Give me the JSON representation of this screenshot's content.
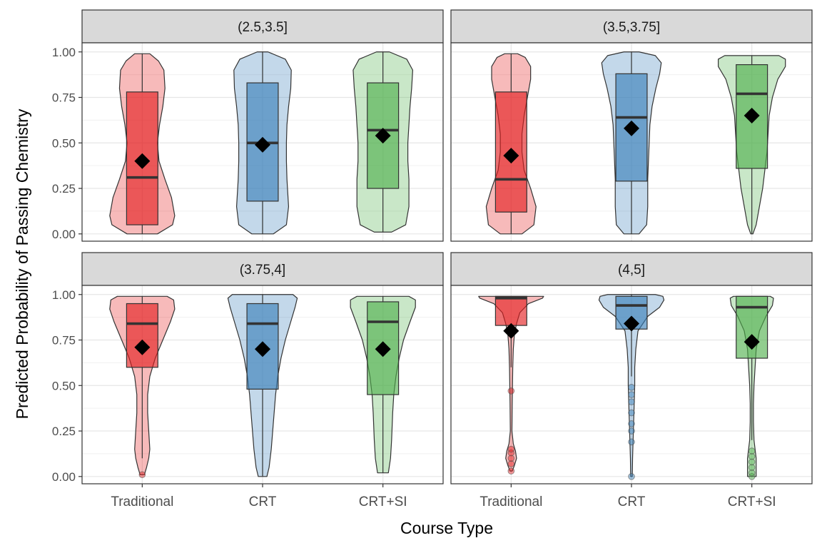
{
  "chart_data": {
    "type": "violin",
    "xlabel": "Course Type",
    "ylabel": "Predicted Probability of Passing Chemistry",
    "ylim": [
      -0.04,
      1.05
    ],
    "y_ticks": [
      0.0,
      0.25,
      0.5,
      0.75,
      1.0
    ],
    "y_tick_labels": [
      "0.00",
      "0.25",
      "0.50",
      "0.75",
      "1.00"
    ],
    "categories": [
      "Traditional",
      "CRT",
      "CRT+SI"
    ],
    "colors": {
      "Traditional": "#e41a1c",
      "CRT": "#377eb8",
      "CRT+SI": "#4daf4a"
    },
    "mean_marker": "black-diamond",
    "grid": true,
    "legend": "none",
    "panels": [
      {
        "strip": "(2.5,3.5]",
        "groups": [
          {
            "category": "Traditional",
            "box": {
              "q1": 0.05,
              "median": 0.31,
              "q3": 0.78,
              "whisker_low": 0.0,
              "whisker_high": 0.99
            },
            "mean": 0.4,
            "outliers": [],
            "violin": [
              [
                0.0,
                0.28
              ],
              [
                0.05,
                0.56
              ],
              [
                0.1,
                0.6
              ],
              [
                0.2,
                0.54
              ],
              [
                0.3,
                0.42
              ],
              [
                0.4,
                0.31
              ],
              [
                0.5,
                0.28
              ],
              [
                0.6,
                0.32
              ],
              [
                0.7,
                0.38
              ],
              [
                0.8,
                0.42
              ],
              [
                0.9,
                0.4
              ],
              [
                0.95,
                0.3
              ],
              [
                0.99,
                0.14
              ]
            ]
          },
          {
            "category": "CRT",
            "box": {
              "q1": 0.18,
              "median": 0.5,
              "q3": 0.83,
              "whisker_low": 0.0,
              "whisker_high": 1.0
            },
            "mean": 0.49,
            "outliers": [],
            "violin": [
              [
                0.0,
                0.2
              ],
              [
                0.05,
                0.44
              ],
              [
                0.15,
                0.48
              ],
              [
                0.3,
                0.45
              ],
              [
                0.4,
                0.44
              ],
              [
                0.5,
                0.44
              ],
              [
                0.6,
                0.45
              ],
              [
                0.7,
                0.48
              ],
              [
                0.8,
                0.52
              ],
              [
                0.9,
                0.53
              ],
              [
                0.96,
                0.42
              ],
              [
                1.0,
                0.1
              ]
            ]
          },
          {
            "category": "CRT+SI",
            "box": {
              "q1": 0.25,
              "median": 0.57,
              "q3": 0.83,
              "whisker_low": 0.01,
              "whisker_high": 1.0
            },
            "mean": 0.54,
            "outliers": [],
            "violin": [
              [
                0.01,
                0.16
              ],
              [
                0.05,
                0.42
              ],
              [
                0.15,
                0.48
              ],
              [
                0.3,
                0.48
              ],
              [
                0.4,
                0.46
              ],
              [
                0.5,
                0.46
              ],
              [
                0.6,
                0.48
              ],
              [
                0.7,
                0.5
              ],
              [
                0.8,
                0.53
              ],
              [
                0.9,
                0.55
              ],
              [
                0.96,
                0.44
              ],
              [
                1.0,
                0.12
              ]
            ]
          }
        ]
      },
      {
        "strip": "(3.5,3.75]",
        "groups": [
          {
            "category": "Traditional",
            "box": {
              "q1": 0.12,
              "median": 0.3,
              "q3": 0.78,
              "whisker_low": 0.0,
              "whisker_high": 0.99
            },
            "mean": 0.43,
            "outliers": [],
            "violin": [
              [
                0.0,
                0.2
              ],
              [
                0.05,
                0.42
              ],
              [
                0.15,
                0.46
              ],
              [
                0.25,
                0.36
              ],
              [
                0.35,
                0.24
              ],
              [
                0.45,
                0.2
              ],
              [
                0.55,
                0.2
              ],
              [
                0.65,
                0.24
              ],
              [
                0.75,
                0.3
              ],
              [
                0.85,
                0.36
              ],
              [
                0.92,
                0.36
              ],
              [
                0.97,
                0.26
              ],
              [
                0.99,
                0.12
              ]
            ]
          },
          {
            "category": "CRT",
            "box": {
              "q1": 0.29,
              "median": 0.64,
              "q3": 0.88,
              "whisker_low": 0.0,
              "whisker_high": 1.0
            },
            "mean": 0.58,
            "outliers": [],
            "violin": [
              [
                0.0,
                0.14
              ],
              [
                0.05,
                0.28
              ],
              [
                0.15,
                0.3
              ],
              [
                0.3,
                0.3
              ],
              [
                0.45,
                0.32
              ],
              [
                0.6,
                0.34
              ],
              [
                0.7,
                0.38
              ],
              [
                0.8,
                0.45
              ],
              [
                0.88,
                0.52
              ],
              [
                0.94,
                0.55
              ],
              [
                0.98,
                0.44
              ],
              [
                1.0,
                0.14
              ]
            ]
          },
          {
            "category": "CRT+SI",
            "box": {
              "q1": 0.36,
              "median": 0.77,
              "q3": 0.93,
              "whisker_low": 0.0,
              "whisker_high": 0.98
            },
            "mean": 0.65,
            "outliers": [],
            "violin": [
              [
                0.0,
                0.02
              ],
              [
                0.05,
                0.08
              ],
              [
                0.15,
                0.14
              ],
              [
                0.25,
                0.2
              ],
              [
                0.35,
                0.24
              ],
              [
                0.45,
                0.28
              ],
              [
                0.55,
                0.3
              ],
              [
                0.65,
                0.32
              ],
              [
                0.75,
                0.38
              ],
              [
                0.85,
                0.48
              ],
              [
                0.92,
                0.62
              ],
              [
                0.96,
                0.62
              ],
              [
                0.98,
                0.5
              ]
            ]
          }
        ]
      },
      {
        "strip": "(3.75,4]",
        "groups": [
          {
            "category": "Traditional",
            "box": {
              "q1": 0.6,
              "median": 0.84,
              "q3": 0.95,
              "whisker_low": 0.1,
              "whisker_high": 0.99
            },
            "mean": 0.71,
            "outliers": [
              0.01
            ],
            "violin": [
              [
                0.01,
                0.04
              ],
              [
                0.05,
                0.08
              ],
              [
                0.1,
                0.12
              ],
              [
                0.15,
                0.14
              ],
              [
                0.25,
                0.12
              ],
              [
                0.35,
                0.1
              ],
              [
                0.45,
                0.1
              ],
              [
                0.55,
                0.14
              ],
              [
                0.65,
                0.24
              ],
              [
                0.75,
                0.38
              ],
              [
                0.85,
                0.52
              ],
              [
                0.92,
                0.6
              ],
              [
                0.97,
                0.58
              ],
              [
                0.99,
                0.46
              ]
            ]
          },
          {
            "category": "CRT",
            "box": {
              "q1": 0.48,
              "median": 0.84,
              "q3": 0.95,
              "whisker_low": 0.0,
              "whisker_high": 1.0
            },
            "mean": 0.7,
            "outliers": [],
            "violin": [
              [
                0.0,
                0.08
              ],
              [
                0.05,
                0.12
              ],
              [
                0.15,
                0.16
              ],
              [
                0.3,
                0.2
              ],
              [
                0.45,
                0.24
              ],
              [
                0.55,
                0.28
              ],
              [
                0.65,
                0.34
              ],
              [
                0.75,
                0.42
              ],
              [
                0.85,
                0.52
              ],
              [
                0.93,
                0.6
              ],
              [
                0.98,
                0.64
              ],
              [
                1.0,
                0.56
              ]
            ]
          },
          {
            "category": "CRT+SI",
            "box": {
              "q1": 0.45,
              "median": 0.85,
              "q3": 0.96,
              "whisker_low": 0.02,
              "whisker_high": 0.99
            },
            "mean": 0.7,
            "outliers": [],
            "violin": [
              [
                0.02,
                0.1
              ],
              [
                0.1,
                0.14
              ],
              [
                0.2,
                0.16
              ],
              [
                0.35,
                0.18
              ],
              [
                0.45,
                0.2
              ],
              [
                0.55,
                0.24
              ],
              [
                0.65,
                0.3
              ],
              [
                0.75,
                0.38
              ],
              [
                0.85,
                0.5
              ],
              [
                0.93,
                0.6
              ],
              [
                0.97,
                0.6
              ],
              [
                0.99,
                0.48
              ]
            ]
          }
        ]
      },
      {
        "strip": "(4,5]",
        "groups": [
          {
            "category": "Traditional",
            "box": {
              "q1": 0.83,
              "median": 0.98,
              "q3": 0.99,
              "whisker_low": 0.6,
              "whisker_high": 0.99
            },
            "mean": 0.8,
            "outliers": [
              0.03,
              0.07,
              0.1,
              0.13,
              0.15,
              0.47
            ],
            "violin": [
              [
                0.03,
                0.02
              ],
              [
                0.06,
                0.06
              ],
              [
                0.1,
                0.1
              ],
              [
                0.14,
                0.08
              ],
              [
                0.18,
                0.04
              ],
              [
                0.25,
                0.015
              ],
              [
                0.4,
                0.02
              ],
              [
                0.5,
                0.025
              ],
              [
                0.6,
                0.03
              ],
              [
                0.7,
                0.04
              ],
              [
                0.78,
                0.06
              ],
              [
                0.84,
                0.1
              ],
              [
                0.9,
                0.16
              ],
              [
                0.95,
                0.32
              ],
              [
                0.98,
                0.58
              ],
              [
                0.99,
                0.6
              ]
            ]
          },
          {
            "category": "CRT",
            "box": {
              "q1": 0.81,
              "median": 0.94,
              "q3": 0.99,
              "whisker_low": 0.55,
              "whisker_high": 1.0
            },
            "mean": 0.84,
            "outliers": [
              0.0,
              0.19,
              0.25,
              0.29,
              0.35,
              0.41,
              0.45,
              0.49
            ],
            "violin": [
              [
                0.0,
                0.015
              ],
              [
                0.1,
                0.02
              ],
              [
                0.2,
                0.03
              ],
              [
                0.3,
                0.04
              ],
              [
                0.4,
                0.05
              ],
              [
                0.5,
                0.06
              ],
              [
                0.6,
                0.06
              ],
              [
                0.7,
                0.08
              ],
              [
                0.8,
                0.12
              ],
              [
                0.88,
                0.3
              ],
              [
                0.93,
                0.52
              ],
              [
                0.97,
                0.6
              ],
              [
                0.99,
                0.58
              ],
              [
                1.0,
                0.44
              ]
            ]
          },
          {
            "category": "CRT+SI",
            "box": {
              "q1": 0.65,
              "median": 0.93,
              "q3": 0.99,
              "whisker_low": 0.2,
              "whisker_high": 0.99
            },
            "mean": 0.74,
            "outliers": [
              0.0,
              0.02,
              0.05,
              0.08,
              0.11,
              0.14
            ],
            "violin": [
              [
                0.0,
                0.08
              ],
              [
                0.05,
                0.08
              ],
              [
                0.1,
                0.08
              ],
              [
                0.15,
                0.06
              ],
              [
                0.2,
                0.04
              ],
              [
                0.3,
                0.03
              ],
              [
                0.4,
                0.03
              ],
              [
                0.5,
                0.04
              ],
              [
                0.6,
                0.06
              ],
              [
                0.7,
                0.08
              ],
              [
                0.8,
                0.14
              ],
              [
                0.88,
                0.26
              ],
              [
                0.94,
                0.38
              ],
              [
                0.98,
                0.4
              ],
              [
                0.99,
                0.34
              ]
            ]
          }
        ]
      }
    ]
  }
}
